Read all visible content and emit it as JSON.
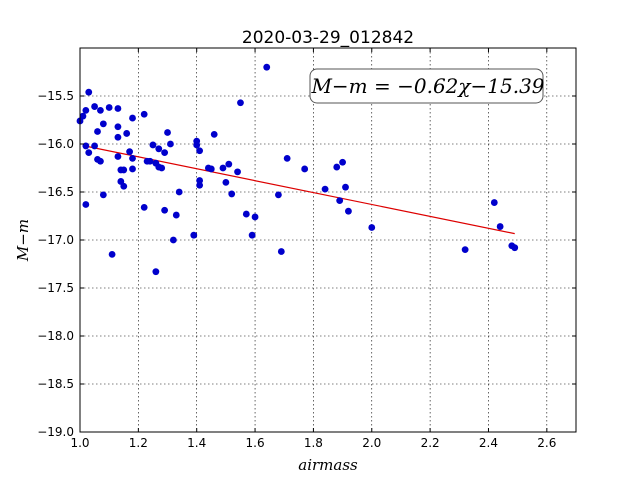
{
  "chart_data": {
    "type": "scatter",
    "title": "2020-03-29_012842",
    "xlabel": "airmass",
    "ylabel": "M−m",
    "xlim": [
      1.0,
      2.7
    ],
    "ylim": [
      -19.0,
      -15.0
    ],
    "y_inverted": true,
    "grid": true,
    "x_ticks": [
      1.0,
      1.2,
      1.4,
      1.6,
      1.8,
      2.0,
      2.2,
      2.4,
      2.6
    ],
    "x_tick_labels": [
      "1.0",
      "1.2",
      "1.4",
      "1.6",
      "1.8",
      "2.0",
      "2.2",
      "2.4",
      "2.6"
    ],
    "y_ticks": [
      -15.5,
      -16.0,
      -16.5,
      -17.0,
      -17.5,
      -18.0,
      -18.5,
      -19.0
    ],
    "y_tick_labels": [
      "−15.5",
      "−16.0",
      "−16.5",
      "−17.0",
      "−17.5",
      "−18.0",
      "−18.5",
      "−19.0"
    ],
    "annotation": "M−m = −0.62χ−15.39",
    "marker_color": "#0000cc",
    "fit_color": "#dd0000",
    "fit": {
      "slope": -0.62,
      "intercept": -15.39,
      "x_range": [
        1.03,
        2.49
      ]
    },
    "points": [
      [
        1.0,
        -15.76
      ],
      [
        1.01,
        -15.71
      ],
      [
        1.02,
        -15.65
      ],
      [
        1.03,
        -15.46
      ],
      [
        1.02,
        -16.02
      ],
      [
        1.03,
        -16.09
      ],
      [
        1.02,
        -16.63
      ],
      [
        1.05,
        -16.02
      ],
      [
        1.05,
        -15.61
      ],
      [
        1.06,
        -15.87
      ],
      [
        1.06,
        -16.16
      ],
      [
        1.07,
        -16.18
      ],
      [
        1.07,
        -15.65
      ],
      [
        1.08,
        -15.79
      ],
      [
        1.08,
        -16.53
      ],
      [
        1.1,
        -15.62
      ],
      [
        1.11,
        -17.15
      ],
      [
        1.13,
        -15.63
      ],
      [
        1.13,
        -15.82
      ],
      [
        1.13,
        -15.93
      ],
      [
        1.13,
        -16.13
      ],
      [
        1.14,
        -16.27
      ],
      [
        1.14,
        -16.39
      ],
      [
        1.15,
        -16.44
      ],
      [
        1.15,
        -16.27
      ],
      [
        1.16,
        -15.89
      ],
      [
        1.17,
        -16.08
      ],
      [
        1.18,
        -16.26
      ],
      [
        1.18,
        -16.15
      ],
      [
        1.18,
        -15.73
      ],
      [
        1.22,
        -15.69
      ],
      [
        1.22,
        -16.66
      ],
      [
        1.23,
        -16.18
      ],
      [
        1.24,
        -16.18
      ],
      [
        1.25,
        -16.01
      ],
      [
        1.26,
        -16.2
      ],
      [
        1.26,
        -17.33
      ],
      [
        1.27,
        -16.24
      ],
      [
        1.27,
        -16.05
      ],
      [
        1.28,
        -16.25
      ],
      [
        1.29,
        -16.09
      ],
      [
        1.29,
        -16.69
      ],
      [
        1.3,
        -15.88
      ],
      [
        1.31,
        -16.0
      ],
      [
        1.32,
        -17.0
      ],
      [
        1.33,
        -16.74
      ],
      [
        1.34,
        -16.5
      ],
      [
        1.39,
        -16.95
      ],
      [
        1.4,
        -15.97
      ],
      [
        1.4,
        -16.01
      ],
      [
        1.41,
        -16.43
      ],
      [
        1.41,
        -16.07
      ],
      [
        1.41,
        -16.38
      ],
      [
        1.44,
        -16.25
      ],
      [
        1.45,
        -16.26
      ],
      [
        1.46,
        -15.9
      ],
      [
        1.49,
        -16.25
      ],
      [
        1.5,
        -16.4
      ],
      [
        1.51,
        -16.21
      ],
      [
        1.52,
        -16.52
      ],
      [
        1.54,
        -16.29
      ],
      [
        1.55,
        -15.57
      ],
      [
        1.57,
        -16.73
      ],
      [
        1.59,
        -16.95
      ],
      [
        1.6,
        -16.76
      ],
      [
        1.64,
        -15.2
      ],
      [
        1.68,
        -16.53
      ],
      [
        1.69,
        -17.12
      ],
      [
        1.71,
        -16.15
      ],
      [
        1.77,
        -16.26
      ],
      [
        1.84,
        -16.47
      ],
      [
        1.88,
        -16.24
      ],
      [
        1.89,
        -16.59
      ],
      [
        1.9,
        -16.19
      ],
      [
        1.91,
        -16.45
      ],
      [
        1.92,
        -16.7
      ],
      [
        2.0,
        -16.87
      ],
      [
        2.32,
        -17.1
      ],
      [
        2.42,
        -16.61
      ],
      [
        2.44,
        -16.86
      ],
      [
        2.48,
        -17.06
      ],
      [
        2.49,
        -17.08
      ]
    ]
  }
}
